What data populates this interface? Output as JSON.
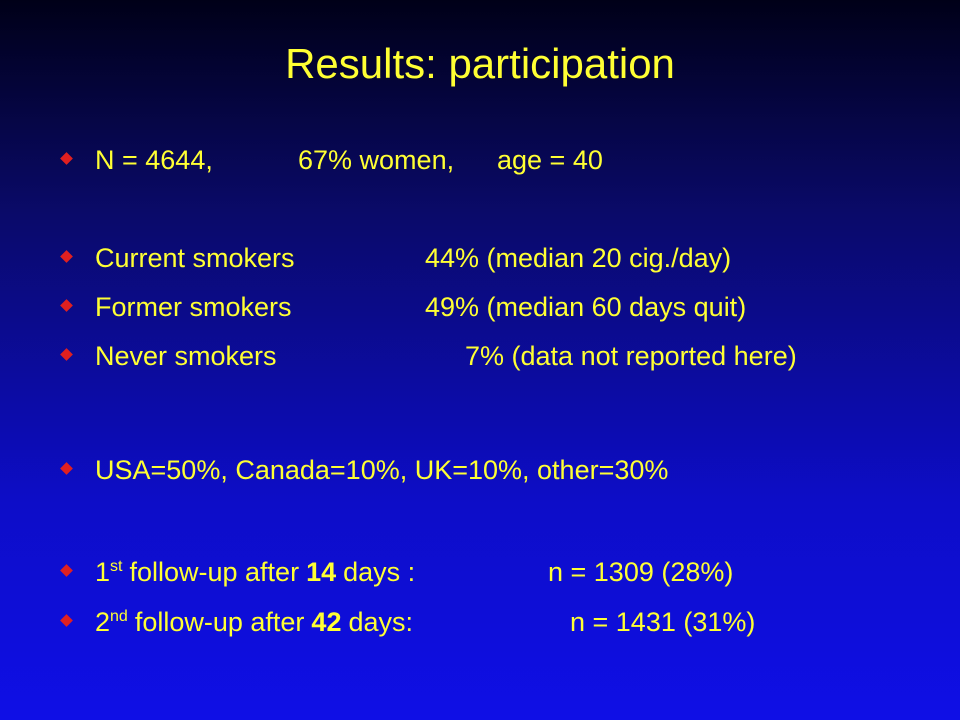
{
  "title": "Results: participation",
  "bullets": [
    {
      "cells": [
        "N = 4644,",
        "67% women,",
        "age = 40"
      ]
    },
    {
      "cells": [
        "Current smokers",
        "44% (median 20 cig./day)"
      ]
    },
    {
      "cells": [
        "Former smokers",
        "49% (median 60 days quit)"
      ]
    },
    {
      "cells": [
        "Never smokers",
        "7% (data not reported here)"
      ]
    },
    {
      "cells": [
        "USA=50%, Canada=10%, UK=10%, other=30%"
      ]
    },
    {
      "cells": [
        "1",
        "st",
        "follow-up after",
        "14",
        "days :",
        "n = 1309 (28%)"
      ]
    },
    {
      "cells": [
        "2",
        "nd",
        "follow-up after",
        "42",
        "days:",
        "n = 1431 (31%)"
      ]
    }
  ]
}
